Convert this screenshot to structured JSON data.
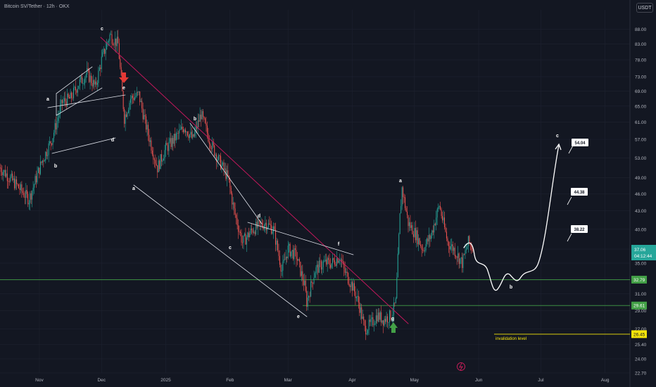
{
  "header": {
    "title": "Bitcoin SV/Tether · 12h · OKX",
    "currency_button": "USDT"
  },
  "colors": {
    "background": "#131722",
    "grid": "#1e2230",
    "candle_up": "#26a69a",
    "candle_down": "#ef5350",
    "trendline": "#c2185b",
    "support_line": "#43a047",
    "invalidation": "#f5e50a",
    "projection": "#ffffff",
    "arrow_down": "#e53935",
    "arrow_up": "#43a047"
  },
  "chart_data": {
    "type": "candlestick",
    "title": "Bitcoin SV/Tether · 12h · OKX",
    "y_scale": "log",
    "ylim": [
      22.7,
      95
    ],
    "y_ticks": [
      "88.00",
      "83.00",
      "78.00",
      "73.00",
      "69.00",
      "65.00",
      "61.00",
      "57.00",
      "53.00",
      "49.00",
      "46.00",
      "43.00",
      "40.00",
      "37.00",
      "35.00",
      "33.00",
      "31.00",
      "29.00",
      "27.00",
      "25.40",
      "24.00",
      "22.70"
    ],
    "x_ticks": [
      "Nov",
      "Dec",
      "2025",
      "Feb",
      "Mar",
      "Apr",
      "May",
      "Jun",
      "Jul",
      "Aug"
    ],
    "x_tick_dates": [
      "2024-11-01",
      "2024-12-01",
      "2025-01-01",
      "2025-02-01",
      "2025-03-01",
      "2025-04-01",
      "2025-05-01",
      "2025-06-01",
      "2025-07-01",
      "2025-08-01"
    ],
    "x_range": [
      "2024-10-13",
      "2025-08-13"
    ],
    "price_path": [
      [
        "2024-10-13",
        51
      ],
      [
        "2024-10-20",
        48
      ],
      [
        "2024-10-27",
        45
      ],
      [
        "2024-11-02",
        52
      ],
      [
        "2024-11-07",
        57
      ],
      [
        "2024-11-12",
        66
      ],
      [
        "2024-11-16",
        67
      ],
      [
        "2024-11-20",
        71
      ],
      [
        "2024-11-24",
        74
      ],
      [
        "2024-11-28",
        70
      ],
      [
        "2024-12-01",
        78
      ],
      [
        "2024-12-05",
        86
      ],
      [
        "2024-12-09",
        83
      ],
      [
        "2024-12-12",
        62
      ],
      [
        "2024-12-15",
        67
      ],
      [
        "2024-12-19",
        68
      ],
      [
        "2024-12-22",
        61
      ],
      [
        "2024-12-26",
        54
      ],
      [
        "2024-12-28",
        51
      ],
      [
        "2025-01-01",
        55
      ],
      [
        "2025-01-05",
        57
      ],
      [
        "2025-01-10",
        60
      ],
      [
        "2025-01-14",
        57
      ],
      [
        "2025-01-18",
        63
      ],
      [
        "2025-01-22",
        57
      ],
      [
        "2025-01-26",
        53
      ],
      [
        "2025-01-31",
        49
      ],
      [
        "2025-02-03",
        43
      ],
      [
        "2025-02-07",
        38
      ],
      [
        "2025-02-12",
        40
      ],
      [
        "2025-02-18",
        41
      ],
      [
        "2025-02-22",
        40
      ],
      [
        "2025-02-26",
        34
      ],
      [
        "2025-03-01",
        37
      ],
      [
        "2025-03-05",
        36
      ],
      [
        "2025-03-09",
        32
      ],
      [
        "2025-03-10",
        30
      ],
      [
        "2025-03-14",
        34
      ],
      [
        "2025-03-18",
        35
      ],
      [
        "2025-03-22",
        35
      ],
      [
        "2025-03-26",
        36
      ],
      [
        "2025-03-28",
        34
      ],
      [
        "2025-04-01",
        32
      ],
      [
        "2025-04-04",
        30
      ],
      [
        "2025-04-07",
        27
      ],
      [
        "2025-04-10",
        27.5
      ],
      [
        "2025-04-13",
        28.5
      ],
      [
        "2025-04-16",
        28
      ],
      [
        "2025-04-20",
        28.5
      ],
      [
        "2025-04-22",
        30
      ],
      [
        "2025-04-24",
        42
      ],
      [
        "2025-04-25",
        47
      ],
      [
        "2025-04-28",
        41
      ],
      [
        "2025-05-02",
        39
      ],
      [
        "2025-05-05",
        37
      ],
      [
        "2025-05-09",
        39
      ],
      [
        "2025-05-13",
        44
      ],
      [
        "2025-05-17",
        38
      ],
      [
        "2025-05-20",
        37
      ],
      [
        "2025-05-24",
        35
      ],
      [
        "2025-05-27",
        38
      ],
      [
        "2025-05-29",
        37.06
      ]
    ],
    "last_price": "37.06",
    "countdown": "04:12:44",
    "horizontal_levels": [
      {
        "value": 32.79,
        "label": "32.79",
        "color": "#43a047"
      },
      {
        "value": 29.61,
        "label": "29.61",
        "color": "#43a047"
      },
      {
        "value": 26.45,
        "label": "26.45",
        "color": "#f5e50a"
      }
    ],
    "annotations": {
      "invalidation_text": "invalidation level",
      "targets": [
        "54.04",
        "44.38",
        "38.22"
      ]
    },
    "wave_labels": [
      "a",
      "b",
      "c",
      "d",
      "e",
      "a",
      "b",
      "c",
      "d",
      "e",
      "f",
      "g",
      "a",
      "b",
      "c",
      "e"
    ]
  }
}
